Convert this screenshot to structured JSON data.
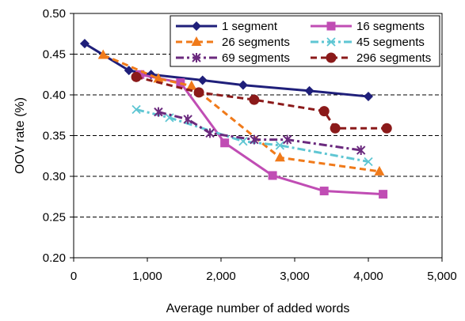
{
  "chart_data": {
    "type": "line",
    "xlabel": "Average number of added words",
    "ylabel": "OOV rate (%)",
    "xlim": [
      0,
      5000
    ],
    "ylim": [
      0.2,
      0.5
    ],
    "xticks": [
      "0",
      "1,000",
      "2,000",
      "3,000",
      "4,000",
      "5,000"
    ],
    "yticks": [
      "0.20",
      "0.25",
      "0.30",
      "0.35",
      "0.40",
      "0.45",
      "0.50"
    ],
    "grid": "horizontal dashed",
    "legend_position": "top-right",
    "series": [
      {
        "name": "1 segment",
        "color": "#1F1F7A",
        "dash": "solid",
        "marker": "diamond",
        "x": [
          150,
          750,
          1050,
          1750,
          2300,
          3200,
          4000
        ],
        "y": [
          0.463,
          0.43,
          0.425,
          0.418,
          0.412,
          0.405,
          0.398
        ]
      },
      {
        "name": "16 segments",
        "color": "#C04DB4",
        "dash": "solid",
        "marker": "square",
        "x": [
          900,
          1450,
          2050,
          2700,
          3400,
          4200
        ],
        "y": [
          0.425,
          0.415,
          0.341,
          0.301,
          0.282,
          0.278
        ]
      },
      {
        "name": "26 segments",
        "color": "#F07A1A",
        "dash": "dash",
        "marker": "triangle",
        "x": [
          400,
          1150,
          1600,
          2800,
          4150
        ],
        "y": [
          0.449,
          0.42,
          0.411,
          0.323,
          0.306
        ]
      },
      {
        "name": "45 segments",
        "color": "#5FC6D3",
        "dash": "dashdot",
        "marker": "x",
        "x": [
          850,
          1300,
          2300,
          2800,
          4000
        ],
        "y": [
          0.382,
          0.372,
          0.343,
          0.338,
          0.318
        ]
      },
      {
        "name": "69 segments",
        "color": "#6B2A7E",
        "dash": "dashdot",
        "marker": "star",
        "x": [
          1150,
          1550,
          1850,
          2450,
          2900,
          3900
        ],
        "y": [
          0.379,
          0.37,
          0.353,
          0.345,
          0.345,
          0.332
        ]
      },
      {
        "name": "296 segments",
        "color": "#8B1A1A",
        "dash": "dash",
        "marker": "circle",
        "x": [
          850,
          1700,
          2450,
          3400,
          3550,
          4250
        ],
        "y": [
          0.422,
          0.403,
          0.394,
          0.38,
          0.359,
          0.359
        ]
      }
    ]
  }
}
